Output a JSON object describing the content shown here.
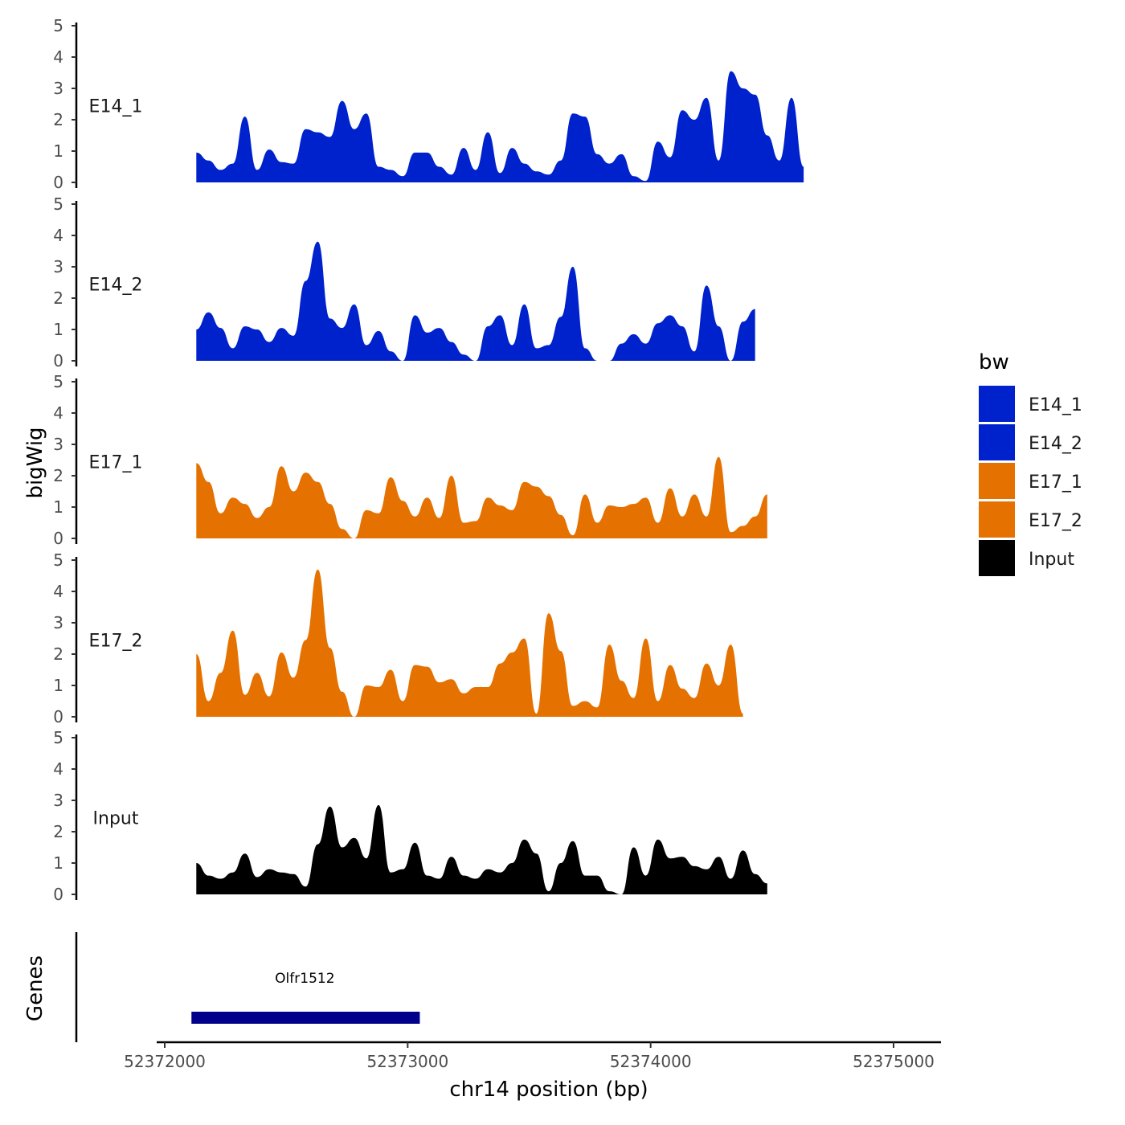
{
  "chart_data": {
    "type": "area",
    "title": "",
    "xlabel": "chr14 position (bp)",
    "ylabel": "bigWig",
    "gene_panel_label": "Genes",
    "xlim": [
      52371990,
      52375220
    ],
    "ylim": [
      0,
      5
    ],
    "x_ticks": [
      52372000,
      52373000,
      52374000,
      52375000
    ],
    "x_tick_labels": [
      "52372000",
      "52373000",
      "52374000",
      "52375000"
    ],
    "y_ticks": [
      0,
      1,
      2,
      3,
      4,
      5
    ],
    "y_tick_labels": [
      "0",
      "1",
      "2",
      "3",
      "4",
      "5"
    ],
    "x_start": 52372130,
    "x_step": 50,
    "legend": {
      "title": "bw",
      "position": "right",
      "entries": [
        {
          "label": "E14_1",
          "color": "#0022cc"
        },
        {
          "label": "E14_2",
          "color": "#0022cc"
        },
        {
          "label": "E17_1",
          "color": "#e57200"
        },
        {
          "label": "E17_2",
          "color": "#e57200"
        },
        {
          "label": "Input",
          "color": "#000000"
        }
      ]
    },
    "series": [
      {
        "name": "E14_1",
        "color": "#0022cc",
        "values": [
          0.95,
          0.7,
          0.4,
          0.6,
          2.1,
          0.4,
          1.05,
          0.65,
          0.6,
          1.7,
          1.6,
          1.45,
          2.6,
          1.7,
          2.2,
          0.5,
          0.4,
          0.2,
          0.95,
          0.95,
          0.5,
          0.25,
          1.1,
          0.4,
          1.6,
          0.3,
          1.1,
          0.6,
          0.35,
          0.25,
          0.7,
          2.2,
          2.1,
          0.9,
          0.6,
          0.9,
          0.2,
          0.05,
          1.3,
          0.8,
          2.3,
          2.0,
          2.7,
          0.7,
          3.55,
          3.0,
          2.8,
          1.5,
          0.7,
          2.7,
          0.5
        ]
      },
      {
        "name": "E14_2",
        "color": "#0022cc",
        "values": [
          1.0,
          1.55,
          1.05,
          0.4,
          1.1,
          1.0,
          0.6,
          1.05,
          0.8,
          2.55,
          3.8,
          1.35,
          1.05,
          1.8,
          0.5,
          0.95,
          0.3,
          0.0,
          1.45,
          0.9,
          1.05,
          0.6,
          0.2,
          0.0,
          1.1,
          1.45,
          0.5,
          1.8,
          0.4,
          0.5,
          1.4,
          3.0,
          0.4,
          0.0,
          0.0,
          0.55,
          0.85,
          0.55,
          1.2,
          1.45,
          1.1,
          0.3,
          2.4,
          1.1,
          0.0,
          1.25,
          1.65
        ]
      },
      {
        "name": "E17_1",
        "color": "#e57200",
        "values": [
          2.4,
          1.8,
          0.8,
          1.3,
          1.1,
          0.65,
          1.0,
          2.3,
          1.5,
          2.1,
          1.8,
          1.1,
          0.3,
          0.0,
          0.9,
          0.8,
          1.95,
          1.2,
          0.7,
          1.3,
          0.65,
          2.0,
          0.5,
          0.55,
          1.3,
          1.05,
          0.9,
          1.8,
          1.65,
          1.35,
          0.75,
          0.1,
          1.4,
          0.5,
          1.05,
          1.0,
          1.1,
          1.3,
          0.5,
          1.6,
          0.7,
          1.4,
          0.7,
          2.6,
          0.2,
          0.4,
          0.7,
          1.4
        ]
      },
      {
        "name": "E17_2",
        "color": "#e57200",
        "values": [
          2.0,
          0.5,
          1.4,
          2.75,
          0.7,
          1.4,
          0.65,
          2.05,
          1.25,
          2.45,
          4.7,
          2.2,
          0.8,
          0.0,
          1.0,
          0.95,
          1.5,
          0.5,
          1.65,
          1.6,
          1.1,
          1.2,
          0.75,
          0.95,
          0.95,
          1.7,
          2.05,
          2.5,
          0.1,
          3.3,
          2.1,
          0.35,
          0.5,
          0.3,
          2.3,
          1.15,
          0.6,
          2.5,
          0.5,
          1.65,
          0.9,
          0.6,
          1.7,
          1.0,
          2.3,
          0.1
        ]
      },
      {
        "name": "Input",
        "color": "#000000",
        "values": [
          1.0,
          0.6,
          0.5,
          0.7,
          1.3,
          0.55,
          0.8,
          0.7,
          0.65,
          0.25,
          1.6,
          2.8,
          1.5,
          1.8,
          1.15,
          2.85,
          0.7,
          0.8,
          1.65,
          0.6,
          0.5,
          1.2,
          0.6,
          0.5,
          0.8,
          0.7,
          1.0,
          1.75,
          1.3,
          0.1,
          1.0,
          1.7,
          0.6,
          0.6,
          0.1,
          0.0,
          1.5,
          0.6,
          1.75,
          1.15,
          1.2,
          0.9,
          0.8,
          1.2,
          0.5,
          1.4,
          0.65,
          0.35
        ]
      }
    ],
    "genes": [
      {
        "name": "Olfr1512",
        "start": 52372110,
        "end": 52373050,
        "color": "#00008b"
      }
    ]
  }
}
